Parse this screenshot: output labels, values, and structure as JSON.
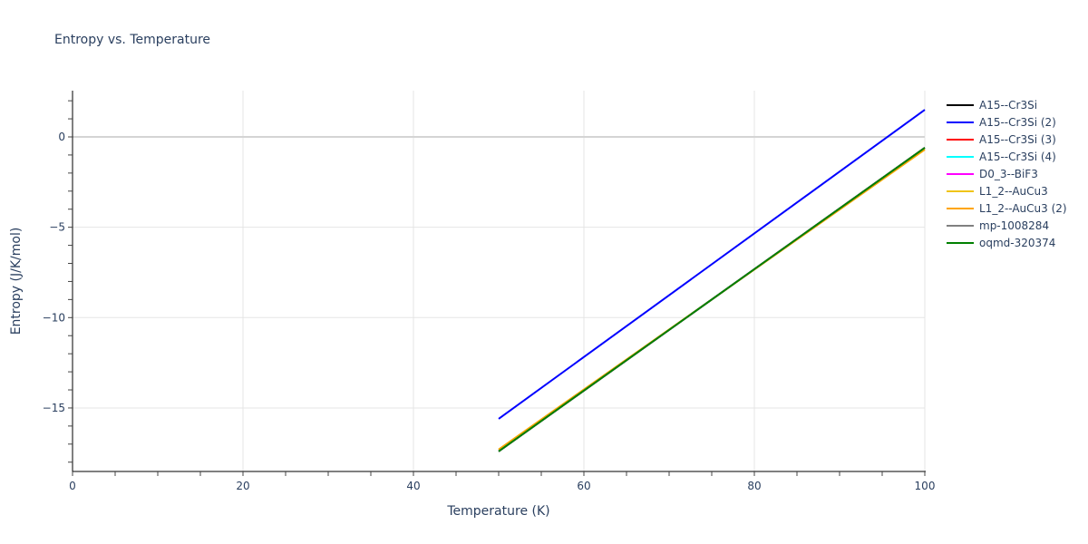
{
  "chart": {
    "title": "Entropy vs. Temperature",
    "xlabel": "Temperature (K)",
    "ylabel": "Entropy (J/K/mol)"
  },
  "chart_data": {
    "type": "line",
    "title": "Entropy vs. Temperature",
    "xlabel": "Temperature (K)",
    "ylabel": "Entropy (J/K/mol)",
    "xlim": [
      0,
      100
    ],
    "ylim": [
      -18.5,
      2.6
    ],
    "x_ticks": [
      0,
      20,
      40,
      60,
      80,
      100
    ],
    "y_ticks": [
      0,
      -5,
      -10,
      -15
    ],
    "x_tick_labels": [
      "0",
      "20",
      "40",
      "60",
      "80",
      "100"
    ],
    "y_tick_labels": [
      "0",
      "−5",
      "−10",
      "−15"
    ],
    "grid": true,
    "legend_position": "right",
    "series": [
      {
        "name": "A15--Cr3Si",
        "color": "#000000",
        "x": [
          50,
          100
        ],
        "y": [
          -17.4,
          -0.6
        ],
        "visible_in_plot": false
      },
      {
        "name": "A15--Cr3Si (2)",
        "color": "#0000ff",
        "x": [
          50,
          100
        ],
        "y": [
          -15.6,
          1.5
        ]
      },
      {
        "name": "A15--Cr3Si (3)",
        "color": "#ff0000",
        "x": [
          50,
          100
        ],
        "y": [
          -17.4,
          -0.6
        ],
        "visible_in_plot": false
      },
      {
        "name": "A15--Cr3Si (4)",
        "color": "#00ffff",
        "x": [
          50,
          100
        ],
        "y": [
          -17.4,
          -0.6
        ],
        "visible_in_plot": false
      },
      {
        "name": "D0_3--BiF3",
        "color": "#ff00ff",
        "x": [
          50,
          100
        ],
        "y": [
          -17.4,
          -0.6
        ],
        "visible_in_plot": false
      },
      {
        "name": "L1_2--AuCu3",
        "color": "#f0c419",
        "x": [
          50,
          100
        ],
        "y": [
          -17.3,
          -0.7
        ]
      },
      {
        "name": "L1_2--AuCu3 (2)",
        "color": "#ffa500",
        "x": [
          50,
          100
        ],
        "y": [
          -17.3,
          -0.7
        ],
        "visible_in_plot": false
      },
      {
        "name": "mp-1008284",
        "color": "#808080",
        "x": [
          50,
          100
        ],
        "y": [
          -17.4,
          -0.6
        ],
        "visible_in_plot": false
      },
      {
        "name": "oqmd-320374",
        "color": "#008000",
        "x": [
          50,
          100
        ],
        "y": [
          -17.4,
          -0.6
        ]
      }
    ]
  },
  "legend": {
    "items": [
      {
        "label": "A15--Cr3Si",
        "color": "#000000"
      },
      {
        "label": "A15--Cr3Si (2)",
        "color": "#0000ff"
      },
      {
        "label": "A15--Cr3Si (3)",
        "color": "#ff0000"
      },
      {
        "label": "A15--Cr3Si (4)",
        "color": "#00ffff"
      },
      {
        "label": "D0_3--BiF3",
        "color": "#ff00ff"
      },
      {
        "label": "L1_2--AuCu3",
        "color": "#f0c419"
      },
      {
        "label": "L1_2--AuCu3 (2)",
        "color": "#ffa500"
      },
      {
        "label": "mp-1008284",
        "color": "#808080"
      },
      {
        "label": "oqmd-320374",
        "color": "#008000"
      }
    ]
  }
}
